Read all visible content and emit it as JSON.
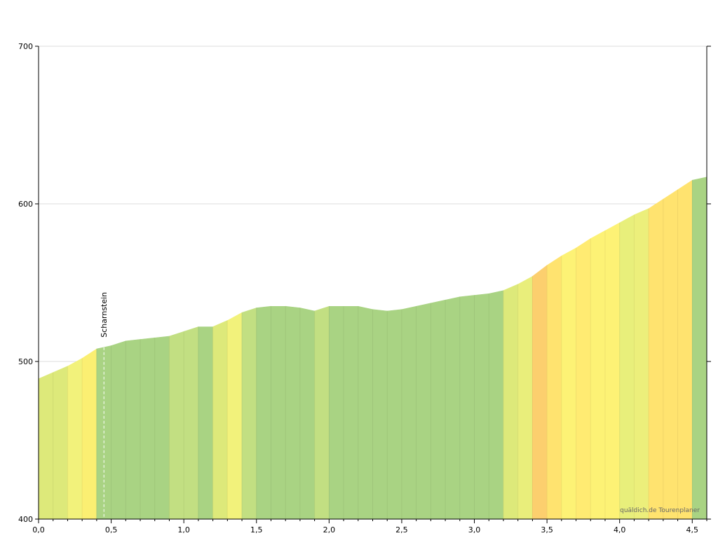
{
  "chart_data": {
    "type": "area",
    "title": "",
    "xlabel": "",
    "ylabel": "",
    "xlim": [
      0,
      4.6
    ],
    "ylim": [
      400,
      700
    ],
    "grid": true,
    "x_ticks": [
      0.0,
      0.5,
      1.0,
      1.5,
      2.0,
      2.5,
      3.0,
      3.5,
      4.0,
      4.5
    ],
    "x_tick_labels": [
      "0,0",
      "0,5",
      "1,0",
      "1,5",
      "2,0",
      "2,5",
      "3,0",
      "3,5",
      "4,0",
      "4,5"
    ],
    "y_ticks": [
      400,
      500,
      600,
      700
    ],
    "y_tick_labels": [
      "400",
      "500",
      "600",
      "700"
    ],
    "profile": {
      "x": [
        0.0,
        0.1,
        0.2,
        0.3,
        0.4,
        0.5,
        0.6,
        0.7,
        0.8,
        0.9,
        1.0,
        1.1,
        1.2,
        1.3,
        1.4,
        1.5,
        1.6,
        1.7,
        1.8,
        1.9,
        2.0,
        2.1,
        2.2,
        2.3,
        2.4,
        2.5,
        2.6,
        2.7,
        2.8,
        2.9,
        3.0,
        3.1,
        3.2,
        3.3,
        3.4,
        3.5,
        3.6,
        3.7,
        3.8,
        3.9,
        4.0,
        4.1,
        4.2,
        4.3,
        4.4,
        4.5,
        4.6
      ],
      "elevation": [
        489,
        493,
        497,
        502,
        508,
        510,
        513,
        514,
        515,
        516,
        519,
        522,
        522,
        526,
        531,
        534,
        535,
        535,
        534,
        532,
        535,
        535,
        535,
        533,
        532,
        533,
        535,
        537,
        539,
        541,
        542,
        543,
        545,
        549,
        554,
        561,
        567,
        572,
        578,
        583,
        588,
        593,
        597,
        603,
        609,
        615,
        617
      ]
    },
    "segment_colors": [
      "#dde97a",
      "#dde97a",
      "#f2f27b",
      "#fbef72",
      "#a9d383",
      "#a9d383",
      "#a9d383",
      "#a9d383",
      "#a9d383",
      "#c2df82",
      "#c2df82",
      "#a9d383",
      "#dde97a",
      "#f2f27b",
      "#c2df82",
      "#a9d383",
      "#a9d383",
      "#a9d383",
      "#a9d383",
      "#c2df82",
      "#a9d383",
      "#a9d383",
      "#a9d383",
      "#a9d383",
      "#a9d383",
      "#a9d383",
      "#a9d383",
      "#a9d383",
      "#a9d383",
      "#a9d383",
      "#a9d383",
      "#a9d383",
      "#dde97a",
      "#e9ee7b",
      "#fccf6e",
      "#ffe36f",
      "#fdf275",
      "#ffeb72",
      "#fdf275",
      "#fdf275",
      "#e8ef7b",
      "#ecef7b",
      "#ffe36f",
      "#ffe36f",
      "#ffe36f",
      "#a9d383"
    ],
    "markers": [
      {
        "x": 0.45,
        "label": "Scharnstein"
      }
    ],
    "grid_color": "#dcdcdc",
    "axis_color": "#000000"
  },
  "watermark": "quäldich.de Tourenplaner"
}
